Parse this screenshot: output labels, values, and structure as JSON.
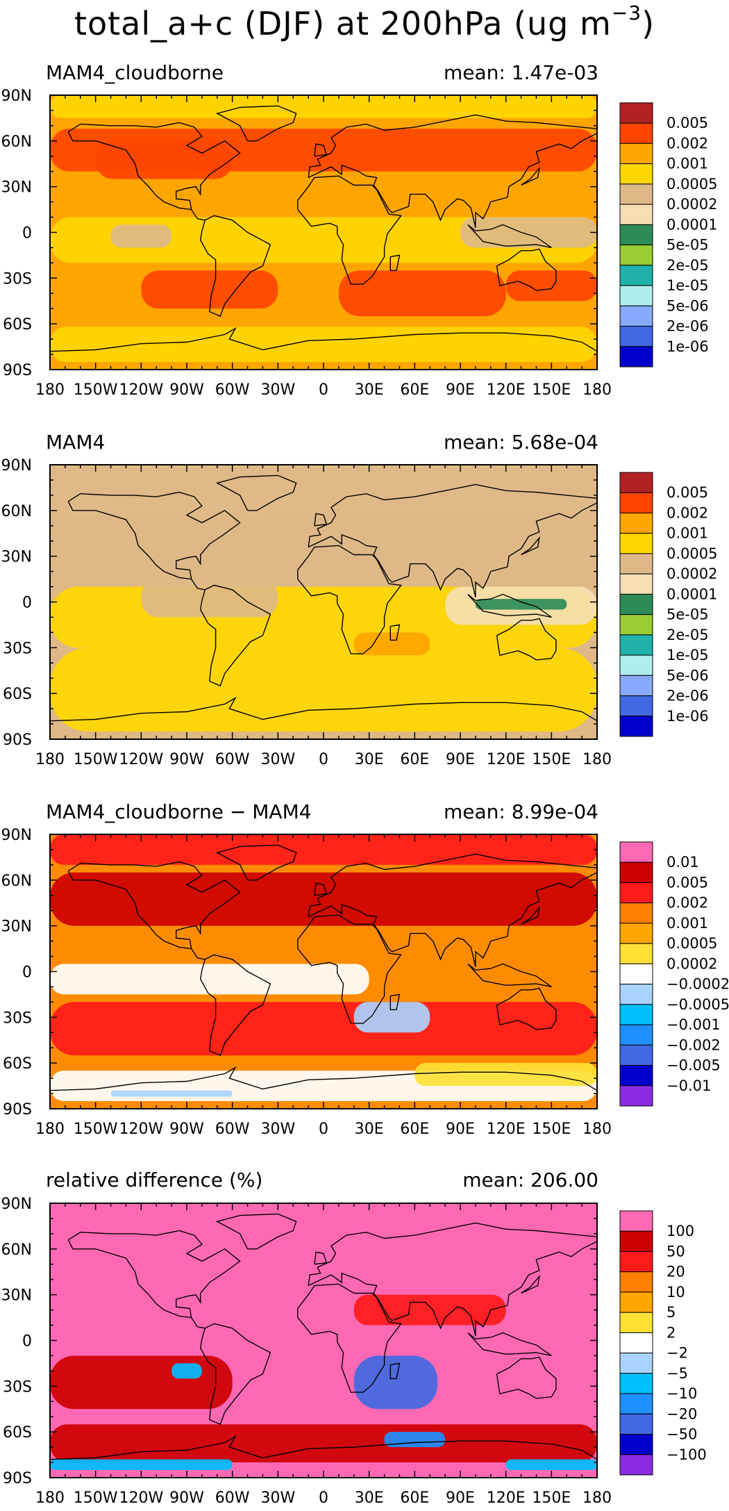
{
  "title": {
    "prefix": "total_a+c (DJF) at 200hPa (ug m",
    "exponent": "−3",
    "suffix": ")"
  },
  "axes": {
    "lat_labels": [
      "90N",
      "60N",
      "30N",
      "0",
      "30S",
      "60S",
      "90S"
    ],
    "lat_values": [
      90,
      60,
      30,
      0,
      -30,
      -60,
      -90
    ],
    "lon_labels": [
      "180",
      "150W",
      "120W",
      "90W",
      "60W",
      "30W",
      "0",
      "30E",
      "60E",
      "90E",
      "120E",
      "150E",
      "180"
    ],
    "lon_values": [
      -180,
      -150,
      -120,
      -90,
      -60,
      -30,
      0,
      30,
      60,
      90,
      120,
      150,
      180
    ]
  },
  "panels": [
    {
      "name": "MAM4_cloudborne",
      "mean_label": "mean: 1.47e-03",
      "background": "#ffa500",
      "colorbar": {
        "labels": [
          "0.005",
          "0.002",
          "0.001",
          "0.0005",
          "0.0002",
          "0.0001",
          "5e-05",
          "2e-05",
          "1e-05",
          "5e-06",
          "2e-06",
          "1e-06"
        ],
        "colors": [
          "#b22222",
          "#ff4500",
          "#ffa500",
          "#ffd700",
          "#deb887",
          "#f5deb3",
          "#2e8b57",
          "#9acd32",
          "#20b2aa",
          "#afeeee",
          "#87a9ff",
          "#4169e1",
          "#0000cd"
        ]
      }
    },
    {
      "name": "MAM4",
      "mean_label": "mean: 5.68e-04",
      "background": "#deb887",
      "colorbar": {
        "labels": [
          "0.005",
          "0.002",
          "0.001",
          "0.0005",
          "0.0002",
          "0.0001",
          "5e-05",
          "2e-05",
          "1e-05",
          "5e-06",
          "2e-06",
          "1e-06"
        ],
        "colors": [
          "#b22222",
          "#ff4500",
          "#ffa500",
          "#ffd700",
          "#deb887",
          "#f5deb3",
          "#2e8b57",
          "#9acd32",
          "#20b2aa",
          "#afeeee",
          "#87a9ff",
          "#4169e1",
          "#0000cd"
        ]
      }
    },
    {
      "name": "MAM4_cloudborne − MAM4",
      "mean_label": "mean: 8.99e-04",
      "background": "#ff8c00",
      "colorbar": {
        "labels": [
          "0.01",
          "0.005",
          "0.002",
          "0.001",
          "0.0005",
          "0.0002",
          "−0.0002",
          "−0.0005",
          "−0.001",
          "−0.002",
          "−0.005",
          "−0.01"
        ],
        "colors": [
          "#ff69b4",
          "#cd0000",
          "#ff1a1a",
          "#ff7f00",
          "#ffa500",
          "#ffe135",
          "#ffffff",
          "#aad4ff",
          "#00bfff",
          "#1e90ff",
          "#4169e1",
          "#0000cd",
          "#8a2be2"
        ]
      }
    },
    {
      "name": "relative difference (%)",
      "mean_label": "mean: 206.00",
      "background": "#ff69b4",
      "colorbar": {
        "labels": [
          "100",
          "50",
          "20",
          "10",
          "5",
          "2",
          "−2",
          "−5",
          "−10",
          "−20",
          "−50",
          "−100"
        ],
        "colors": [
          "#ff69b4",
          "#cd0000",
          "#ff1a1a",
          "#ff7f00",
          "#ffa500",
          "#ffe135",
          "#ffffff",
          "#aad4ff",
          "#00bfff",
          "#1e90ff",
          "#4169e1",
          "#0000cd",
          "#8a2be2"
        ]
      }
    }
  ]
}
